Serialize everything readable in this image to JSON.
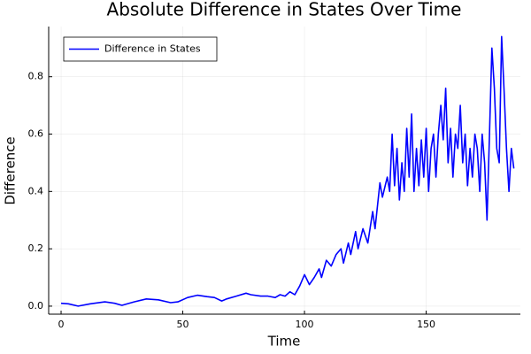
{
  "chart_data": {
    "type": "line",
    "title": "Absolute Difference in States Over Time",
    "x_label": "Time",
    "y_label": "Difference",
    "xlim": [
      -5.1,
      188.7
    ],
    "ylim": [
      -0.028,
      0.975
    ],
    "xticks": [
      0,
      50,
      100,
      150
    ],
    "yticks": [
      {
        "value": 0,
        "label": "0.0"
      },
      0.2,
      0.4,
      0.6,
      0.8
    ],
    "grid": true,
    "legend": "top-left",
    "series": [
      {
        "name": "Difference in States",
        "color": "#0000ff",
        "x": [
          0,
          3,
          7,
          12,
          18,
          22,
          25,
          30,
          35,
          40,
          45,
          48,
          52,
          56,
          60,
          63,
          66,
          68,
          72,
          76,
          78,
          82,
          85,
          88,
          90,
          92,
          94,
          96,
          98,
          100,
          102,
          104,
          106,
          107,
          109,
          111,
          113,
          115,
          116,
          118,
          119,
          121,
          122,
          124,
          126,
          128,
          129,
          131,
          132,
          134,
          135,
          136,
          137,
          138,
          139,
          140,
          141,
          142,
          143,
          144,
          145,
          146,
          147,
          148,
          149,
          150,
          151,
          152,
          153,
          154,
          155,
          156,
          157,
          158,
          159,
          160,
          161,
          162,
          163,
          164,
          165,
          166,
          167,
          168,
          169,
          170,
          171,
          172,
          173,
          174,
          175,
          176,
          177,
          178,
          179,
          180,
          181,
          182,
          183,
          184,
          185,
          186
        ],
        "values": [
          0.01,
          0.008,
          0.0,
          0.008,
          0.015,
          0.01,
          0.003,
          0.015,
          0.025,
          0.022,
          0.012,
          0.015,
          0.03,
          0.038,
          0.033,
          0.03,
          0.018,
          0.025,
          0.035,
          0.045,
          0.04,
          0.035,
          0.035,
          0.03,
          0.04,
          0.035,
          0.05,
          0.04,
          0.07,
          0.11,
          0.075,
          0.1,
          0.13,
          0.1,
          0.16,
          0.14,
          0.18,
          0.2,
          0.15,
          0.22,
          0.18,
          0.26,
          0.2,
          0.27,
          0.22,
          0.33,
          0.27,
          0.43,
          0.38,
          0.45,
          0.4,
          0.6,
          0.42,
          0.55,
          0.37,
          0.5,
          0.4,
          0.62,
          0.45,
          0.67,
          0.4,
          0.55,
          0.42,
          0.58,
          0.45,
          0.62,
          0.4,
          0.55,
          0.6,
          0.45,
          0.6,
          0.7,
          0.58,
          0.76,
          0.5,
          0.62,
          0.45,
          0.6,
          0.55,
          0.7,
          0.5,
          0.6,
          0.42,
          0.55,
          0.45,
          0.6,
          0.55,
          0.4,
          0.6,
          0.5,
          0.3,
          0.6,
          0.9,
          0.76,
          0.55,
          0.5,
          0.94,
          0.75,
          0.55,
          0.4,
          0.55,
          0.48
        ]
      }
    ]
  }
}
